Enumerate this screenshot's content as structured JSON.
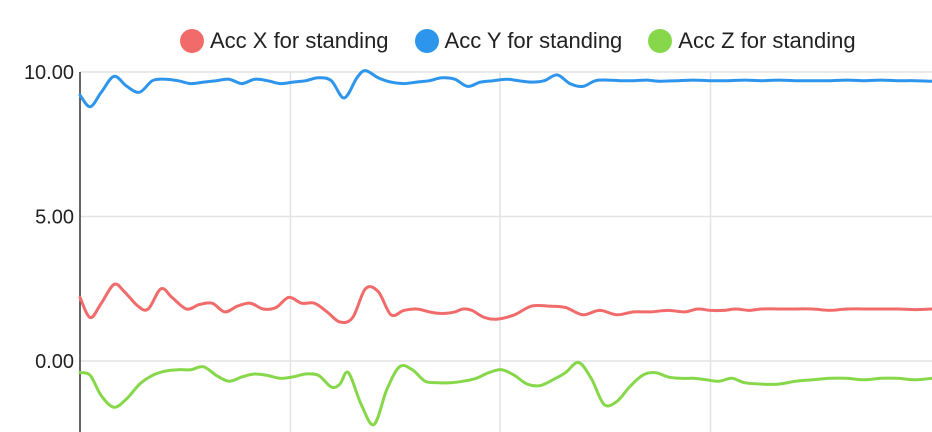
{
  "chart_data": {
    "type": "line",
    "title": "",
    "xlabel": "",
    "ylabel": "",
    "ylim": [
      -2.2,
      10.3
    ],
    "xlim": [
      0,
      100
    ],
    "y_ticks": [
      {
        "value": 10,
        "label": "10.00"
      },
      {
        "value": 5,
        "label": "5.00"
      },
      {
        "value": 0,
        "label": "0.00"
      }
    ],
    "x_gridlines": [
      0,
      24.7,
      49.3,
      74
    ],
    "grid": true,
    "legend_position": "top",
    "series": [
      {
        "name": "Acc X for standing",
        "color": "#f26b6b",
        "x": [
          0,
          1.2,
          2.5,
          4,
          5.2,
          6.8,
          8,
          9.5,
          10.8,
          12.5,
          14,
          15.5,
          17,
          18.5,
          20,
          21.5,
          23,
          24.5,
          26,
          27.5,
          29,
          30.5,
          32,
          33.5,
          35,
          36.5,
          38,
          39.5,
          41,
          42,
          43,
          44,
          45,
          46,
          47.5,
          49,
          51,
          53,
          55,
          57,
          59,
          61,
          63,
          65,
          67,
          69,
          71,
          72.5,
          74,
          75.5,
          77,
          78.5,
          80,
          82,
          84,
          86,
          88,
          90,
          92,
          94,
          96,
          98,
          100
        ],
        "y": [
          2.2,
          1.5,
          2.0,
          2.65,
          2.4,
          1.9,
          1.8,
          2.5,
          2.2,
          1.8,
          1.95,
          2.0,
          1.7,
          1.9,
          2.0,
          1.8,
          1.85,
          2.2,
          2.0,
          2.0,
          1.7,
          1.35,
          1.5,
          2.5,
          2.4,
          1.6,
          1.75,
          1.8,
          1.7,
          1.65,
          1.65,
          1.7,
          1.8,
          1.75,
          1.5,
          1.45,
          1.6,
          1.9,
          1.9,
          1.85,
          1.6,
          1.75,
          1.6,
          1.7,
          1.7,
          1.75,
          1.7,
          1.8,
          1.75,
          1.75,
          1.8,
          1.75,
          1.8,
          1.8,
          1.8,
          1.8,
          1.75,
          1.8,
          1.8,
          1.8,
          1.8,
          1.78,
          1.8
        ]
      },
      {
        "name": "Acc Y for standing",
        "color": "#2e95ec",
        "x": [
          0,
          1.2,
          2.5,
          4,
          5.5,
          7,
          8.5,
          10,
          11.5,
          13,
          14.5,
          16,
          17.5,
          19,
          20.5,
          22,
          23.5,
          25,
          26.5,
          28,
          29.5,
          31,
          32.5,
          33.5,
          35,
          36.5,
          38,
          39.5,
          41,
          42.5,
          44,
          45.5,
          47,
          48.5,
          50,
          51.5,
          53,
          54.5,
          56,
          57.5,
          59,
          60.5,
          62,
          63.5,
          65,
          66.5,
          68,
          70,
          72,
          74,
          76,
          78,
          80,
          82,
          84,
          86,
          88,
          90,
          92,
          94,
          96,
          98,
          100
        ],
        "y": [
          9.2,
          8.8,
          9.3,
          9.85,
          9.5,
          9.3,
          9.7,
          9.75,
          9.7,
          9.6,
          9.65,
          9.7,
          9.75,
          9.6,
          9.75,
          9.7,
          9.6,
          9.65,
          9.7,
          9.8,
          9.7,
          9.1,
          9.8,
          10.05,
          9.8,
          9.65,
          9.6,
          9.65,
          9.7,
          9.8,
          9.75,
          9.5,
          9.65,
          9.7,
          9.75,
          9.7,
          9.65,
          9.7,
          9.9,
          9.6,
          9.5,
          9.7,
          9.72,
          9.7,
          9.7,
          9.72,
          9.68,
          9.7,
          9.72,
          9.7,
          9.7,
          9.72,
          9.7,
          9.72,
          9.7,
          9.7,
          9.7,
          9.72,
          9.7,
          9.72,
          9.7,
          9.7,
          9.68
        ]
      },
      {
        "name": "Acc Z for standing",
        "color": "#86d84a",
        "x": [
          0,
          1.2,
          2.5,
          4,
          5.5,
          7,
          8.5,
          10,
          11.5,
          13,
          14.5,
          16,
          17.5,
          19,
          20.5,
          22,
          23.5,
          25,
          26.5,
          28,
          29.5,
          30.5,
          31.5,
          33,
          34.5,
          36,
          37.5,
          39,
          40.5,
          42,
          43.5,
          45,
          46.5,
          48,
          49.5,
          51,
          52.5,
          54,
          55.5,
          57,
          58.5,
          60,
          61.5,
          63,
          64.5,
          66,
          67.5,
          69,
          70.5,
          72,
          73.5,
          75,
          76.5,
          78,
          80,
          82,
          84,
          86,
          88,
          90,
          92,
          94,
          96,
          98,
          100
        ],
        "y": [
          -0.4,
          -0.5,
          -1.2,
          -1.6,
          -1.3,
          -0.8,
          -0.5,
          -0.35,
          -0.3,
          -0.3,
          -0.2,
          -0.5,
          -0.7,
          -0.55,
          -0.45,
          -0.5,
          -0.6,
          -0.55,
          -0.45,
          -0.5,
          -0.9,
          -0.8,
          -0.4,
          -1.5,
          -2.2,
          -1.0,
          -0.2,
          -0.3,
          -0.7,
          -0.75,
          -0.75,
          -0.7,
          -0.6,
          -0.4,
          -0.3,
          -0.5,
          -0.8,
          -0.85,
          -0.65,
          -0.4,
          -0.05,
          -0.6,
          -1.5,
          -1.4,
          -0.9,
          -0.5,
          -0.4,
          -0.55,
          -0.6,
          -0.6,
          -0.65,
          -0.7,
          -0.6,
          -0.75,
          -0.8,
          -0.8,
          -0.7,
          -0.65,
          -0.6,
          -0.6,
          -0.65,
          -0.6,
          -0.6,
          -0.65,
          -0.6
        ]
      }
    ]
  }
}
